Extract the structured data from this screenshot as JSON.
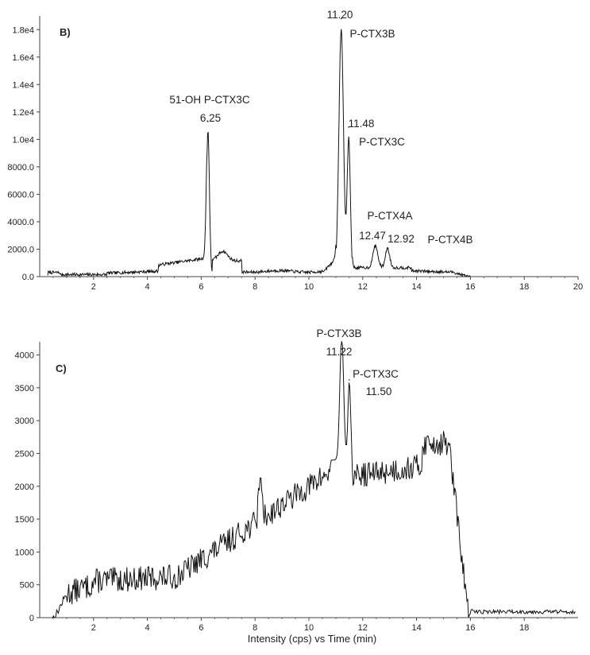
{
  "chart_data": [
    {
      "panel_label": "B)",
      "type": "line",
      "xlim": [
        0,
        20
      ],
      "ylim": [
        0,
        19000
      ],
      "x_ticks": [
        2,
        4,
        6,
        8,
        10,
        12,
        14,
        16,
        18,
        20
      ],
      "y_ticks": [
        {
          "value": 0,
          "label": "0.0"
        },
        {
          "value": 2000,
          "label": "2000.0"
        },
        {
          "value": 4000,
          "label": "4000.0"
        },
        {
          "value": 6000,
          "label": "6000.0"
        },
        {
          "value": 8000,
          "label": "8000.0"
        },
        {
          "value": 10000,
          "label": "1.0e4"
        },
        {
          "value": 12000,
          "label": "1.2e4"
        },
        {
          "value": 14000,
          "label": "1.4e4"
        },
        {
          "value": 16000,
          "label": "1.6e4"
        },
        {
          "value": 18000,
          "label": "1.8e4"
        }
      ],
      "peaks": [
        {
          "time": 6.25,
          "intensity": 11300
        },
        {
          "time": 11.2,
          "intensity": 18800
        },
        {
          "time": 11.48,
          "intensity": 10900
        },
        {
          "time": 12.47,
          "intensity": 2300
        },
        {
          "time": 12.92,
          "intensity": 2100
        }
      ],
      "annotations": [
        {
          "text": "11.20"
        },
        {
          "text": "P-CTX3B"
        },
        {
          "text": "51-OH P-CTX3C"
        },
        {
          "text": "6.25"
        },
        {
          "text": "11.48"
        },
        {
          "text": "P-CTX3C"
        },
        {
          "text": "P-CTX4A"
        },
        {
          "text": "12.47"
        },
        {
          "text": "12.92"
        },
        {
          "text": "P-CTX4B"
        }
      ]
    },
    {
      "panel_label": "C)",
      "type": "line",
      "xlim": [
        0,
        20
      ],
      "ylim": [
        0,
        4200
      ],
      "xlabel": "Intensity (cps) vs Time (min)",
      "x_ticks": [
        2,
        4,
        6,
        8,
        10,
        12,
        14,
        16,
        18
      ],
      "y_ticks": [
        {
          "value": 0,
          "label": "0"
        },
        {
          "value": 500,
          "label": "500"
        },
        {
          "value": 1000,
          "label": "1000"
        },
        {
          "value": 1500,
          "label": "1500"
        },
        {
          "value": 2000,
          "label": "2000"
        },
        {
          "value": 2500,
          "label": "2500"
        },
        {
          "value": 3000,
          "label": "3000"
        },
        {
          "value": 3500,
          "label": "3500"
        },
        {
          "value": 4000,
          "label": "4000"
        }
      ],
      "peaks": [
        {
          "time": 11.22,
          "intensity": 4200
        },
        {
          "time": 11.5,
          "intensity": 3620
        }
      ],
      "annotations": [
        {
          "text": "P-CTX3B"
        },
        {
          "text": "11.22"
        },
        {
          "text": "P-CTX3C"
        },
        {
          "text": "11.50"
        }
      ]
    }
  ]
}
